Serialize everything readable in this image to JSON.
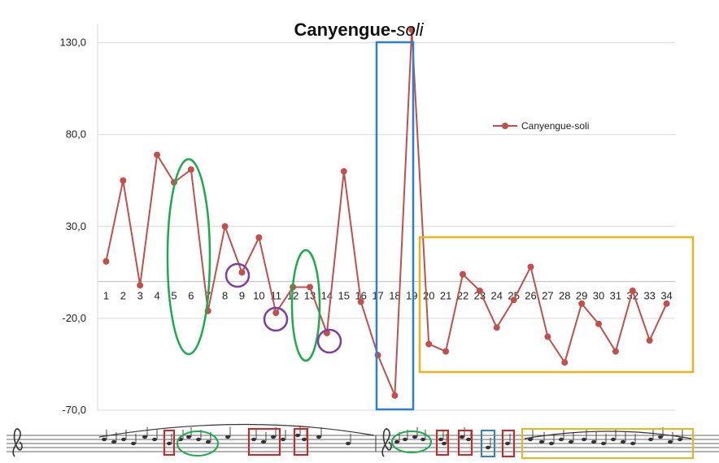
{
  "chart_data": {
    "type": "line",
    "title": "Canyengue-",
    "title_italic": "soli",
    "legend": {
      "entries": [
        "Canyengue-soli"
      ],
      "placement": "right"
    },
    "ylim": [
      -70,
      140
    ],
    "y_ticks": [
      {
        "value": 130,
        "label": "130,0"
      },
      {
        "value": 80,
        "label": "80,0"
      },
      {
        "value": 30,
        "label": "30,0"
      },
      {
        "value": -20,
        "label": "-20,0"
      },
      {
        "value": -70,
        "label": "-70,0"
      }
    ],
    "x_tick_labels": [
      "1",
      "2",
      "3",
      "4",
      "5",
      "6",
      "7",
      "8",
      "9",
      "10",
      "11",
      "12",
      "13",
      "14",
      "15",
      "16",
      "17",
      "18",
      "19",
      "20",
      "21",
      "22",
      "23",
      "24",
      "25",
      "26",
      "27",
      "28",
      "29",
      "30",
      "31",
      "32",
      "33",
      "34"
    ],
    "grid": true,
    "series": [
      {
        "name": "Canyengue-soli",
        "color": "#c0504d",
        "values": [
          11,
          55,
          -2,
          69,
          54,
          61,
          -16,
          30,
          5,
          24,
          -17,
          -3,
          -3,
          -28,
          60,
          -11,
          -40,
          -62,
          137,
          -34,
          -38,
          4,
          -5,
          -25,
          -10,
          8,
          -30,
          -44,
          -12,
          -23,
          -38,
          -5,
          -32,
          -12
        ]
      }
    ]
  },
  "annotation_colors": {
    "green": "#1daa4f",
    "purple": "#7a3fa0",
    "blue": "#2f7fd0",
    "orange": "#f0b020",
    "red": "#e02020"
  }
}
